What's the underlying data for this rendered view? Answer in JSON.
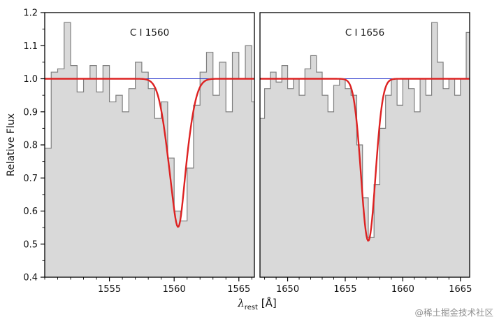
{
  "watermark": "@稀土掘金技术社区",
  "axis": {
    "ylabel": "Relative Flux",
    "xlabel_lambda": "λ",
    "xlabel_sub": "rest",
    "xlabel_unit": " [Å]"
  },
  "colors": {
    "frame": "#000000",
    "tick_label": "#111111",
    "hist_line": "#7f7f7f",
    "hist_fill": "#d9d9d9",
    "continuum": "#2633cc",
    "fit": "#dd2222",
    "panel_label": "#1a1a1a"
  },
  "chart_data": {
    "type": "line",
    "style": "step-histogram spectrum with continuum and Gaussian absorption fits",
    "title": "",
    "xlabel": "λ_rest [Å]",
    "ylabel": "Relative Flux",
    "ylim": [
      0.4,
      1.2
    ],
    "yticks": [
      0.4,
      0.5,
      0.6,
      0.7,
      0.8,
      0.9,
      1.0,
      1.1,
      1.2
    ],
    "y_minor_step": 0.05,
    "x_minor_step": 1,
    "continuum_level": 1.0,
    "grid": false,
    "panels": [
      {
        "label": "C I 1560",
        "xlim": [
          1550.0,
          1566.2
        ],
        "xticks": [
          1555,
          1560,
          1565
        ],
        "bin_start": 1550.0,
        "bin_width": 0.5,
        "flux": [
          0.79,
          1.02,
          1.03,
          1.17,
          1.04,
          0.96,
          1.0,
          1.04,
          0.96,
          1.04,
          0.93,
          0.95,
          0.9,
          0.97,
          1.05,
          1.02,
          0.97,
          0.88,
          0.93,
          0.76,
          0.6,
          0.57,
          0.73,
          0.92,
          1.02,
          1.08,
          0.95,
          1.05,
          0.9,
          1.08,
          1.0,
          1.1,
          0.93
        ],
        "fit_components": [
          {
            "center": 1560.25,
            "depth": 0.38,
            "sigma": 0.75
          },
          {
            "center": 1560.35,
            "depth": 0.07,
            "sigma": 0.3
          }
        ]
      },
      {
        "label": "C I 1656",
        "xlim": [
          1647.6,
          1665.8
        ],
        "xticks": [
          1650,
          1655,
          1660,
          1665
        ],
        "bin_start": 1647.5,
        "bin_width": 0.5,
        "flux": [
          0.88,
          0.97,
          1.02,
          0.99,
          1.04,
          0.97,
          1.0,
          0.95,
          1.03,
          1.07,
          1.02,
          0.95,
          0.9,
          0.98,
          1.0,
          0.97,
          0.95,
          0.8,
          0.64,
          0.52,
          0.68,
          0.85,
          0.95,
          1.0,
          0.92,
          1.0,
          0.97,
          0.9,
          1.0,
          0.95,
          1.17,
          1.05,
          0.97,
          1.0,
          0.95,
          1.0,
          1.14
        ],
        "fit_components": [
          {
            "center": 1657.0,
            "depth": 0.49,
            "sigma": 0.62
          }
        ]
      }
    ]
  }
}
